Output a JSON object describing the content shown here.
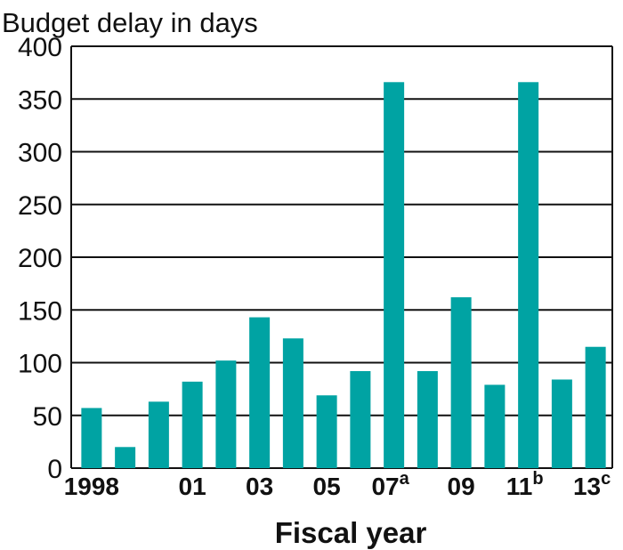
{
  "chart_data": {
    "type": "bar",
    "title": "Budget delay in days",
    "xlabel": "Fiscal year",
    "ylabel": "",
    "ylim": [
      0,
      400
    ],
    "yticks": [
      0,
      50,
      100,
      150,
      200,
      250,
      300,
      350,
      400
    ],
    "grid": true,
    "bar_color": "#00a3a3",
    "categories": [
      "1998",
      "1999",
      "2000",
      "2001",
      "2002",
      "2003",
      "2004",
      "2005",
      "2006",
      "2007",
      "2008",
      "2009",
      "2010",
      "2011",
      "2012",
      "2013"
    ],
    "values": [
      57,
      20,
      63,
      82,
      102,
      143,
      123,
      69,
      92,
      366,
      92,
      162,
      79,
      366,
      84,
      115
    ],
    "xtick_labels": [
      {
        "index": 0,
        "text": "1998",
        "sup": ""
      },
      {
        "index": 3,
        "text": "01",
        "sup": ""
      },
      {
        "index": 5,
        "text": "03",
        "sup": ""
      },
      {
        "index": 7,
        "text": "05",
        "sup": ""
      },
      {
        "index": 9,
        "text": "07",
        "sup": "a"
      },
      {
        "index": 11,
        "text": "09",
        "sup": ""
      },
      {
        "index": 13,
        "text": "11",
        "sup": "b"
      },
      {
        "index": 15,
        "text": "13",
        "sup": "c"
      }
    ]
  }
}
